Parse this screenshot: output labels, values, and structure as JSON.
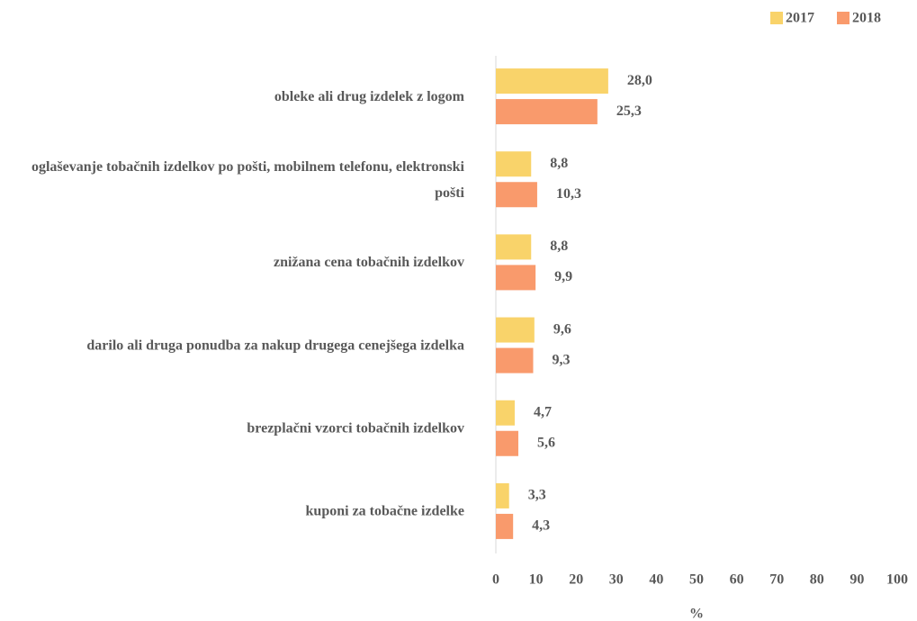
{
  "chart_data": {
    "type": "bar",
    "orientation": "horizontal",
    "categories": [
      "obleke ali drug izdelek z logom",
      "oglaševanje tobačnih izdelkov po pošti, mobilnem telefonu, elektronski pošti",
      "znižana cena tobačnih izdelkov",
      "darilo ali druga ponudba za nakup drugega cenejšega izdelka",
      "brezplačni vzorci tobačnih izdelkov",
      "kuponi za tobačne izdelke"
    ],
    "series": [
      {
        "name": "2017",
        "color": "#f9d36a",
        "values": [
          28.0,
          8.8,
          8.8,
          9.6,
          4.7,
          3.3
        ],
        "value_labels": [
          "28,0",
          "8,8",
          "8,8",
          "9,6",
          "4,7",
          "3,3"
        ]
      },
      {
        "name": "2018",
        "color": "#f99a6c",
        "values": [
          25.3,
          10.3,
          9.9,
          9.3,
          5.6,
          4.3
        ],
        "value_labels": [
          "25,3",
          "10,3",
          "9,9",
          "9,3",
          "5,6",
          "4,3"
        ]
      }
    ],
    "xlabel": "%",
    "xlim": [
      0,
      100
    ],
    "xticks": [
      0,
      10,
      20,
      30,
      40,
      50,
      60,
      70,
      80,
      90,
      100
    ],
    "legend": "top-right"
  }
}
